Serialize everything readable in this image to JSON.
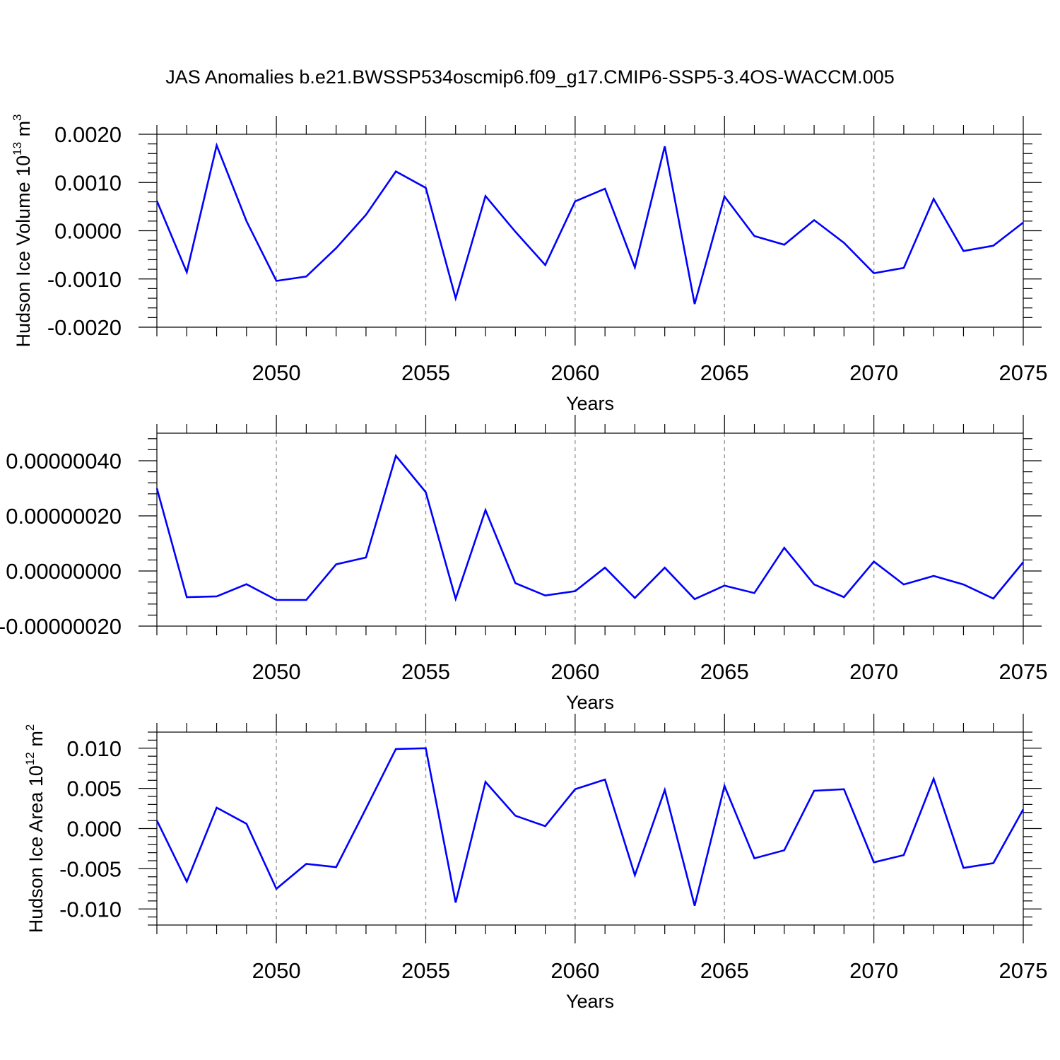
{
  "title": "JAS Anomalies b.e21.BWSSP534oscmip6.f09_g17.CMIP6-SSP5-3.4OS-WACCM.005",
  "colors": {
    "series": "#0000ff",
    "grid": "#999999",
    "axis": "#000000"
  },
  "chart_data": [
    {
      "type": "line",
      "name": "panel-volume",
      "ylabel_main": "Hudson Ice Volume 10",
      "ylabel_exp": "13",
      "ylabel_unit": " m",
      "ylabel_unit_exp": "3",
      "xlabel": "Years",
      "xlim": [
        2046,
        2075
      ],
      "ylim": [
        -0.002,
        0.002
      ],
      "yticks": [
        0.002,
        0.001,
        0.0,
        -0.001,
        -0.002
      ],
      "ytick_labels": [
        "0.0020",
        "0.0010",
        "0.0000",
        "-0.0010",
        "-0.0020"
      ],
      "xticks": [
        2050,
        2055,
        2060,
        2065,
        2070,
        2075
      ],
      "xtick_labels": [
        "2050",
        "2055",
        "2060",
        "2065",
        "2070",
        "2075"
      ],
      "grid_x": [
        2050,
        2055,
        2060,
        2065,
        2070
      ],
      "x": [
        2046,
        2047,
        2048,
        2049,
        2050,
        2051,
        2052,
        2053,
        2054,
        2055,
        2056,
        2057,
        2058,
        2059,
        2060,
        2061,
        2062,
        2063,
        2064,
        2065,
        2066,
        2067,
        2068,
        2069,
        2070,
        2071,
        2072,
        2073,
        2074,
        2075
      ],
      "values": [
        0.00062,
        -0.00086,
        0.00177,
        0.0002,
        -0.00104,
        -0.00095,
        -0.00036,
        0.00033,
        0.00123,
        0.00089,
        -0.0014,
        0.00072,
        -2e-05,
        -0.00071,
        0.00061,
        0.00087,
        -0.00076,
        0.00175,
        -0.00152,
        0.00071,
        -0.00011,
        -0.00029,
        0.00022,
        -0.00025,
        -0.00088,
        -0.00077,
        0.00066,
        -0.00042,
        -0.00031,
        0.00017
      ]
    },
    {
      "type": "line",
      "name": "panel-middle",
      "xlabel": "Years",
      "xlim": [
        2046,
        2075
      ],
      "ylim": [
        -2e-07,
        5e-07
      ],
      "yticks": [
        4e-07,
        2e-07,
        0.0,
        -2e-07
      ],
      "ytick_labels": [
        "0.00000040",
        "0.00000020",
        "0.00000000",
        "-0.00000020"
      ],
      "xticks": [
        2050,
        2055,
        2060,
        2065,
        2070,
        2075
      ],
      "xtick_labels": [
        "2050",
        "2055",
        "2060",
        "2065",
        "2070",
        "2075"
      ],
      "grid_x": [
        2050,
        2055,
        2060,
        2065,
        2070
      ],
      "x": [
        2046,
        2047,
        2048,
        2049,
        2050,
        2051,
        2052,
        2053,
        2054,
        2055,
        2056,
        2057,
        2058,
        2059,
        2060,
        2061,
        2062,
        2063,
        2064,
        2065,
        2066,
        2067,
        2068,
        2069,
        2070,
        2071,
        2072,
        2073,
        2074,
        2075
      ],
      "values": [
        3e-07,
        -9.5e-08,
        -9.2e-08,
        -4.8e-08,
        -1.05e-07,
        -1.05e-07,
        2.4e-08,
        4.9e-08,
        4.18e-07,
        2.86e-07,
        -1.01e-07,
        2.21e-07,
        -4.4e-08,
        -8.9e-08,
        -7.3e-08,
        1.2e-08,
        -9.8e-08,
        1.2e-08,
        -1.02e-07,
        -5.3e-08,
        -8e-08,
        8.4e-08,
        -4.9e-08,
        -9.5e-08,
        3.4e-08,
        -4.9e-08,
        -1.8e-08,
        -4.9e-08,
        -1e-07,
        3.2e-08
      ]
    },
    {
      "type": "line",
      "name": "panel-area",
      "ylabel_main": "Hudson Ice Area 10",
      "ylabel_exp": "12",
      "ylabel_unit": " m",
      "ylabel_unit_exp": "2",
      "xlabel": "Years",
      "xlim": [
        2046,
        2075
      ],
      "ylim": [
        -0.012,
        0.012
      ],
      "yticks": [
        0.01,
        0.005,
        0.0,
        -0.005,
        -0.01
      ],
      "ytick_labels": [
        "0.010",
        "0.005",
        "0.000",
        "-0.005",
        "-0.010"
      ],
      "xticks": [
        2050,
        2055,
        2060,
        2065,
        2070,
        2075
      ],
      "xtick_labels": [
        "2050",
        "2055",
        "2060",
        "2065",
        "2070",
        "2075"
      ],
      "grid_x": [
        2050,
        2055,
        2060,
        2065,
        2070
      ],
      "x": [
        2046,
        2047,
        2048,
        2049,
        2050,
        2051,
        2052,
        2053,
        2054,
        2055,
        2056,
        2057,
        2058,
        2059,
        2060,
        2061,
        2062,
        2063,
        2064,
        2065,
        2066,
        2067,
        2068,
        2069,
        2070,
        2071,
        2072,
        2073,
        2074,
        2075
      ],
      "values": [
        0.001,
        -0.0066,
        0.0026,
        0.0006,
        -0.0075,
        -0.0044,
        -0.0048,
        0.0025,
        0.0099,
        0.01,
        -0.0092,
        0.0058,
        0.0016,
        0.0003,
        0.0049,
        0.0061,
        -0.0058,
        0.0048,
        -0.0096,
        0.0053,
        -0.0037,
        -0.0027,
        0.0047,
        0.0049,
        -0.0042,
        -0.0033,
        0.0062,
        -0.0049,
        -0.0043,
        0.0024
      ]
    }
  ]
}
